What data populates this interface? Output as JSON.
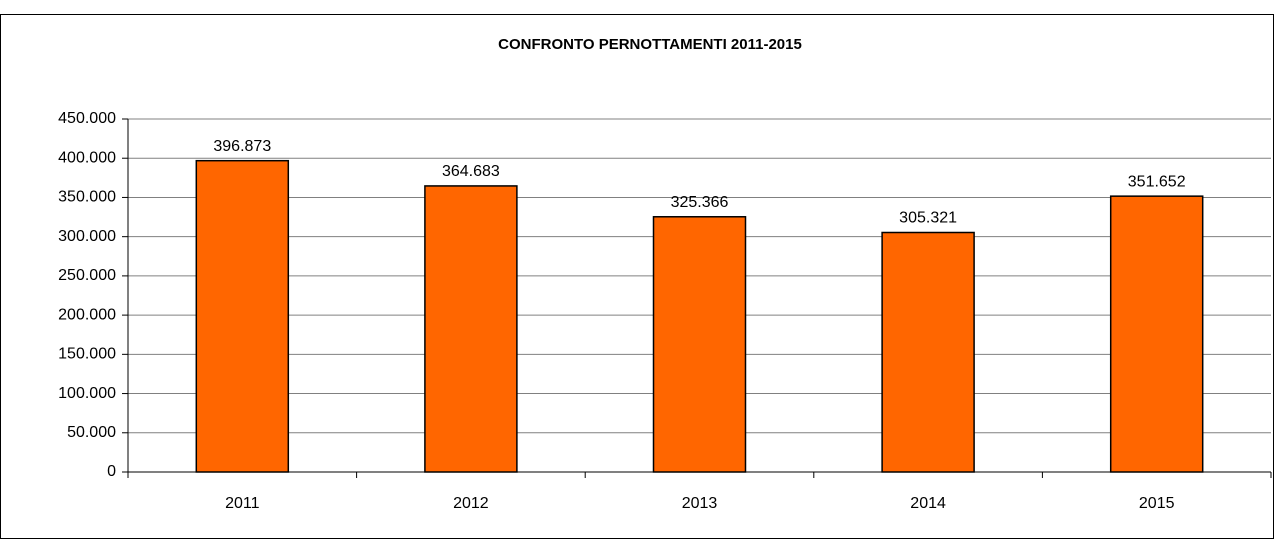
{
  "chart_data": {
    "type": "bar",
    "title": "CONFRONTO PERNOTTAMENTI 2011-2015",
    "categories": [
      "2011",
      "2012",
      "2013",
      "2014",
      "2015"
    ],
    "values": [
      396873,
      364683,
      325366,
      305321,
      351652
    ],
    "value_labels": [
      "396.873",
      "364.683",
      "325.366",
      "305.321",
      "351.652"
    ],
    "color": "#ff6600",
    "ylim": [
      0,
      450000
    ],
    "yticks": [
      0,
      {
        "value": 50000,
        "label": "50.000"
      },
      {
        "value": 100000,
        "label": "100.000"
      },
      {
        "value": 150000,
        "label": "150.000"
      },
      {
        "value": 200000,
        "label": "200.000"
      },
      {
        "value": 250000,
        "label": "250.000"
      },
      {
        "value": 300000,
        "label": "300.000"
      },
      {
        "value": 350000,
        "label": "350.000"
      },
      {
        "value": 400000,
        "label": "400.000"
      },
      {
        "value": 450000,
        "label": "450.000"
      }
    ],
    "grid": true
  }
}
